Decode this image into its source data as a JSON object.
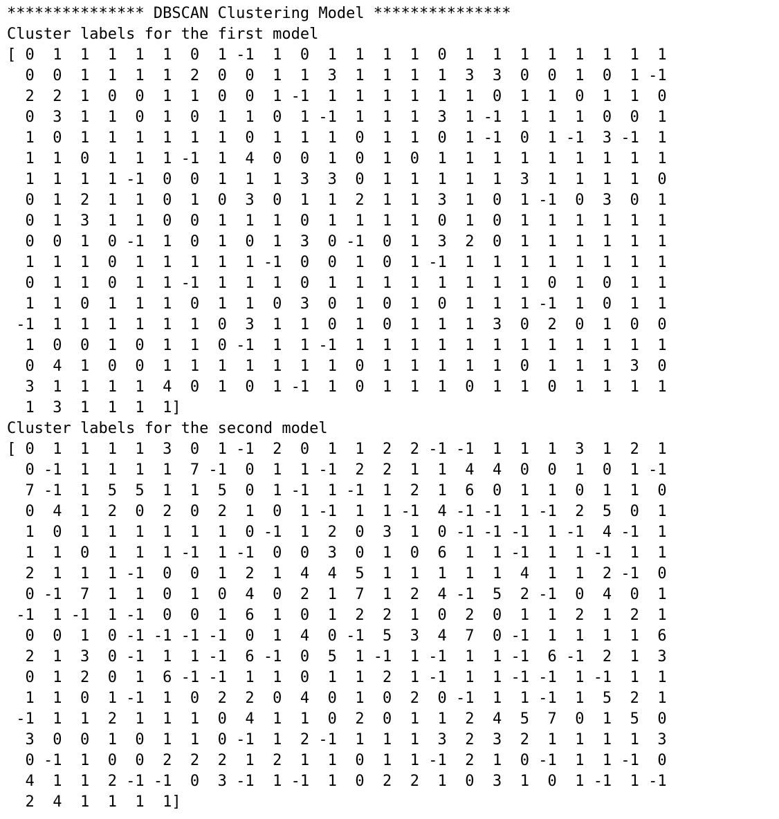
{
  "console": {
    "header": "*************** DBSCAN Clustering Model ***************",
    "sections": [
      {
        "title": "Cluster labels for the first model",
        "rows": [
          "[ 0  1  1  1  1  1  0  1 -1  1  0  1  1  1  1  0  1  1  1  1  1  1  1  1",
          "  0  0  1  1  1  1  2  0  0  1  1  3  1  1  1  1  3  3  0  0  1  0  1 -1",
          "  2  2  1  0  0  1  1  0  0  1 -1  1  1  1  1  1  1  0  1  1  0  1  1  0",
          "  0  3  1  1  0  1  0  1  1  0  1 -1  1  1  1  3  1 -1  1  1  1  0  0  1",
          "  1  0  1  1  1  1  1  1  0  1  1  1  0  1  1  0  1 -1  0  1 -1  3 -1  1",
          "  1  1  0  1  1  1 -1  1  4  0  0  1  0  1  0  1  1  1  1  1  1  1  1  1",
          "  1  1  1  1 -1  0  0  1  1  1  3  3  0  1  1  1  1  1  3  1  1  1  1  0",
          "  0  1  2  1  1  0  1  0  3  0  1  1  2  1  1  3  1  0  1 -1  0  3  0  1",
          "  0  1  3  1  1  0  0  1  1  1  0  1  1  1  1  0  1  0  1  1  1  1  1  1",
          "  0  0  1  0 -1  1  0  1  0  1  3  0 -1  0  1  3  2  0  1  1  1  1  1  1",
          "  1  1  1  0  1  1  1  1  1 -1  0  0  1  0  1 -1  1  1  1  1  1  1  1  1",
          "  0  1  1  0  1  1 -1  1  1  1  0  1  1  1  1  1  1  1  1  0  1  0  1  1",
          "  1  1  0  1  1  1  0  1  1  0  3  0  1  0  1  0  1  1  1 -1  1  0  1  1",
          " -1  1  1  1  1  1  1  0  3  1  1  0  1  0  1  1  1  3  0  2  0  1  0  0",
          "  1  0  0  1  0  1  1  0 -1  1  1 -1  1  1  1  1  1  1  1  1  1  1  1  1",
          "  0  4  1  0  0  1  1  1  1  1  1  1  0  1  1  1  1  1  0  1  1  1  3  0",
          "  3  1  1  1  1  4  0  1  0  1 -1  1  0  1  1  1  0  1  1  0  1  1  1  1",
          "  1  3  1  1  1  1]"
        ]
      },
      {
        "title": "Cluster labels for the second model",
        "rows": [
          "[ 0  1  1  1  1  3  0  1 -1  2  0  1  1  2  2 -1 -1  1  1  1  3  1  2  1",
          "  0 -1  1  1  1  1  7 -1  0  1  1 -1  2  2  1  1  4  4  0  0  1  0  1 -1",
          "  7 -1  1  5  5  1  1  5  0  1 -1  1 -1  1  2  1  6  0  1  1  0  1  1  0",
          "  0  4  1  2  0  2  0  2  1  0  1 -1  1  1 -1  4 -1 -1  1 -1  2  5  0  1",
          "  1  0  1  1  1  1  1  1  0 -1  1  2  0  3  1  0 -1 -1 -1  1 -1  4 -1  1",
          "  1  1  0  1  1  1 -1  1 -1  0  0  3  0  1  0  6  1  1 -1  1  1 -1  1  1",
          "  2  1  1  1 -1  0  0  1  2  1  4  4  5  1  1  1  1  1  4  1  1  2 -1  0",
          "  0 -1  7  1  1  0  1  0  4  0  2  1  7  1  2  4 -1  5  2 -1  0  4  0  1",
          " -1  1 -1  1 -1  0  0  1  6  1  0  1  2  2  1  0  2  0  1  1  2  1  2  1",
          "  0  0  1  0 -1 -1 -1 -1  0  1  4  0 -1  5  3  4  7  0 -1  1  1  1  1  6",
          "  2  1  3  0 -1  1  1 -1  6 -1  0  5  1 -1  1 -1  1  1 -1  6 -1  2  1  3",
          "  0  1  2  0  1  6 -1 -1  1  1  0  1  1  2  1 -1  1  1 -1 -1  1 -1  1  1",
          "  1  1  0  1 -1  1  0  2  2  0  4  0  1  0  2  0 -1  1  1 -1  1  5  2  1",
          " -1  1  1  2  1  1  1  0  4  1  1  0  2  0  1  1  2  4  5  7  0  1  5  0",
          "  3  0  0  1  0  1  1  0 -1  1  2 -1  1  1  1  3  2  3  2  1  1  1  1  3",
          "  0 -1  1  0  0  2  2  2  1  2  1  1  0  1  1 -1  2  1  0 -1  1  1 -1  0",
          "  4  1  1  2 -1 -1  0  3 -1  1 -1  1  0  2  2  1  0  3  1  0  1 -1  1 -1",
          "  2  4  1  1  1  1]"
        ]
      }
    ]
  }
}
